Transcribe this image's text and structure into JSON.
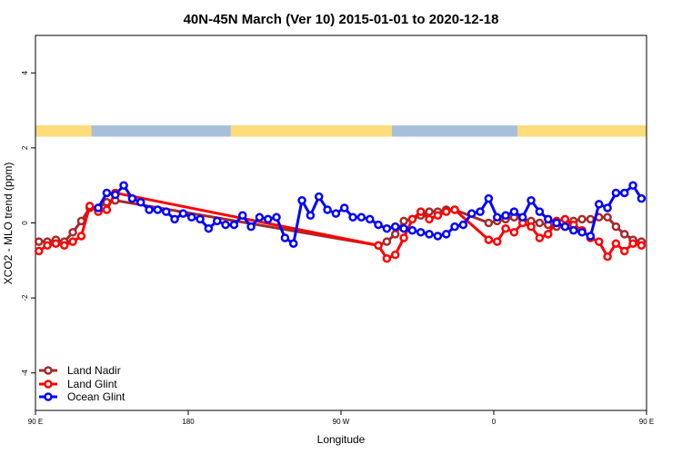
{
  "chart_data": {
    "type": "line",
    "title": "40N-45N March (Ver 10)   2015-01-01 to 2020-12-18",
    "xlabel": "Longitude",
    "ylabel": "XCO2 - MLO trend (ppm)",
    "xlim": [
      90,
      450
    ],
    "ylim": [
      -5,
      5
    ],
    "xticks": [
      {
        "value": 90,
        "label": "90 E"
      },
      {
        "value": 180,
        "label": "180"
      },
      {
        "value": 270,
        "label": "90 W"
      },
      {
        "value": 360,
        "label": "0"
      },
      {
        "value": 450,
        "label": "90 E"
      },
      {
        "value": 540,
        "label": "180"
      }
    ],
    "yticks": [
      {
        "value": -4,
        "label": "-4"
      },
      {
        "value": -2,
        "label": "-2"
      },
      {
        "value": 0,
        "label": "0"
      },
      {
        "value": 2,
        "label": "2"
      },
      {
        "value": 4,
        "label": "4"
      }
    ],
    "grid": false,
    "legend_position": "bottom-left",
    "surface_strip": {
      "y_range": [
        2.3,
        2.6
      ],
      "land_color": "#fddc7a",
      "ocean_color": "#a8bfdc",
      "land_segments": [
        [
          90,
          123
        ],
        [
          205,
          300
        ],
        [
          374,
          463
        ],
        [
          473,
          496
        ],
        [
          530,
          540
        ]
      ]
    },
    "series": [
      {
        "name": "Land Nadir",
        "color": "#a52a2a",
        "x": [
          92,
          97,
          102,
          107,
          112,
          117,
          122,
          127,
          132,
          137,
          292,
          297,
          302,
          307,
          312,
          317,
          322,
          327,
          332,
          337,
          357,
          362,
          367,
          372,
          377,
          382,
          387,
          392,
          397,
          402,
          407,
          412,
          417,
          422,
          427,
          432,
          437,
          442,
          447,
          452,
          457,
          462,
          467,
          472,
          477,
          482,
          487,
          492,
          497
        ],
        "y": [
          -0.5,
          -0.5,
          -0.45,
          -0.5,
          -0.25,
          0.05,
          0.4,
          0.4,
          0.55,
          0.6,
          -0.6,
          -0.5,
          -0.3,
          0.05,
          0.1,
          0.2,
          0.3,
          0.3,
          0.35,
          0.35,
          0.0,
          0.05,
          0.1,
          0.15,
          0.1,
          0.05,
          0.0,
          -0.05,
          -0.1,
          -0.1,
          0.05,
          0.1,
          0.1,
          0.15,
          0.15,
          -0.1,
          -0.3,
          -0.45,
          -0.5,
          -0.5,
          -0.5,
          -0.45,
          -0.45,
          -0.25,
          0.05,
          0.4,
          0.4,
          0.55,
          0.6
        ]
      },
      {
        "name": "Land Glint",
        "color": "#ff0000",
        "x": [
          92,
          97,
          102,
          107,
          112,
          117,
          122,
          127,
          132,
          137,
          292,
          297,
          302,
          307,
          312,
          317,
          322,
          327,
          332,
          337,
          357,
          362,
          367,
          372,
          377,
          382,
          387,
          392,
          397,
          402,
          407,
          412,
          417,
          422,
          427,
          432,
          437,
          442,
          447,
          452,
          457,
          462,
          467,
          472,
          477,
          482,
          487,
          492,
          497
        ],
        "y": [
          -0.75,
          -0.6,
          -0.55,
          -0.6,
          -0.5,
          -0.35,
          0.45,
          0.3,
          0.35,
          0.8,
          -0.6,
          -0.95,
          -0.85,
          -0.4,
          0.1,
          0.3,
          0.1,
          0.2,
          0.3,
          0.35,
          -0.45,
          -0.5,
          -0.15,
          -0.25,
          0.0,
          -0.1,
          -0.4,
          -0.3,
          0.05,
          0.1,
          -0.05,
          -0.2,
          -0.4,
          -0.5,
          -0.9,
          -0.55,
          -0.75,
          -0.55,
          -0.6,
          -0.5,
          -0.35,
          0.45,
          0.3,
          0.35,
          0.8,
          -0.6,
          -0.95,
          -0.85,
          -0.4
        ]
      },
      {
        "name": "Ocean Glint",
        "color": "#0000ff",
        "x": [
          127,
          132,
          137,
          142,
          147,
          152,
          157,
          162,
          167,
          172,
          177,
          182,
          187,
          192,
          197,
          202,
          207,
          212,
          217,
          222,
          227,
          232,
          237,
          242,
          247,
          252,
          257,
          262,
          267,
          272,
          277,
          282,
          287,
          292,
          297,
          302,
          307,
          312,
          317,
          322,
          327,
          332,
          337,
          342,
          347,
          352,
          357,
          362,
          367,
          372,
          377,
          382,
          387,
          392,
          397,
          402,
          407,
          412,
          417,
          422,
          427,
          432,
          437,
          442,
          447,
          452
        ],
        "y": [
          0.4,
          0.8,
          0.75,
          1.0,
          0.65,
          0.55,
          0.35,
          0.35,
          0.3,
          0.1,
          0.25,
          0.15,
          0.1,
          -0.15,
          0.05,
          -0.05,
          -0.05,
          0.2,
          -0.1,
          0.15,
          0.1,
          0.15,
          -0.4,
          -0.55,
          0.6,
          0.2,
          0.7,
          0.35,
          0.25,
          0.4,
          0.15,
          0.15,
          0.1,
          -0.05,
          -0.15,
          -0.1,
          -0.15,
          -0.2,
          -0.25,
          -0.3,
          -0.35,
          -0.3,
          -0.1,
          -0.05,
          0.25,
          0.3,
          0.65,
          0.15,
          0.2,
          0.3,
          0.15,
          0.6,
          0.3,
          0.1,
          0.0,
          -0.1,
          -0.2,
          -0.25,
          -0.35,
          0.5,
          0.4,
          0.8,
          0.8,
          1.0,
          0.65,
          0.55
        ]
      }
    ]
  }
}
